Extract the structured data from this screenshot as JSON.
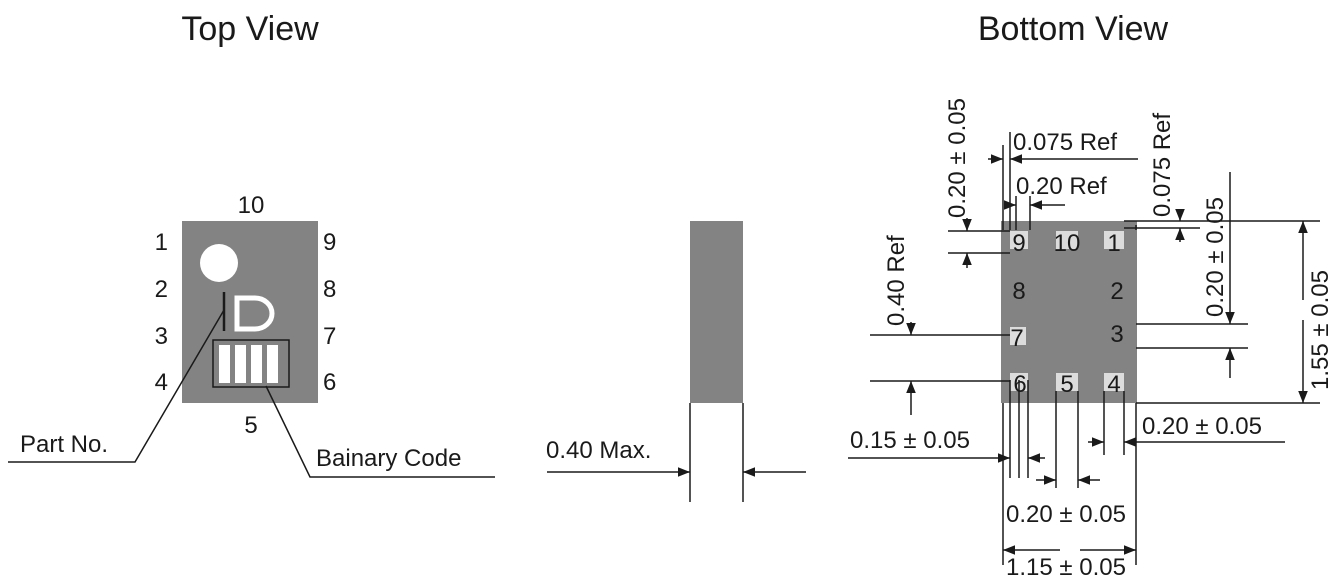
{
  "titles": {
    "top_view": "Top View",
    "bottom_view": "Bottom View"
  },
  "top_view": {
    "pins": {
      "p1": "1",
      "p2": "2",
      "p3": "3",
      "p4": "4",
      "p5": "5",
      "p6": "6",
      "p7": "7",
      "p8": "8",
      "p9": "9",
      "p10": "10"
    },
    "marking_letter": "D",
    "callouts": {
      "part_no": "Part No.",
      "binary_code": "Bainary Code"
    }
  },
  "side_view": {
    "thickness": "0.40 Max."
  },
  "bottom_view": {
    "pads": {
      "p1": "1",
      "p2": "2",
      "p3": "3",
      "p4": "4",
      "p5": "5",
      "p6": "6",
      "p7": "7",
      "p8": "8",
      "p9": "9",
      "p10": "10"
    },
    "dims": {
      "pad_height_top": "0.20 ± 0.05",
      "ref_0075_h": "0.075 Ref",
      "ref_0075_v": "0.075 Ref",
      "ref_020": "0.20 Ref",
      "ref_040": "0.40 Ref",
      "pad_width_right": "0.20 ± 0.05",
      "height_total": "1.55 ± 0.05",
      "pad_015": "0.15 ± 0.05",
      "pad_020_bottom_right": "0.20 ± 0.05",
      "pitch_020": "0.20 ± 0.05",
      "width_total": "1.15 ± 0.05"
    }
  },
  "colors": {
    "body": "#838383",
    "pad": "#dcdcdc",
    "line": "#1a1a1a",
    "marking": "#ffffff"
  }
}
